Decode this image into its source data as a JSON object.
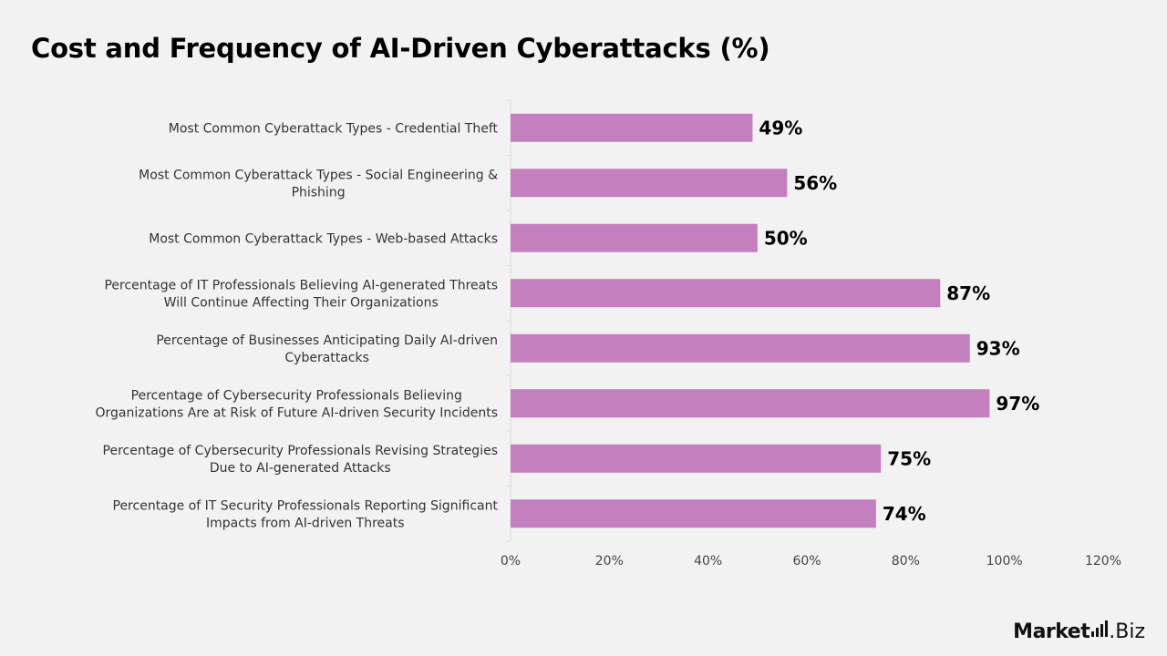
{
  "title": "Cost and Frequency of AI-Driven Cyberattacks  (%)",
  "brand": {
    "part1": "Market",
    "part2": ".Biz"
  },
  "colors": {
    "background": "#f2f2f2",
    "bar": "#c47fbe",
    "axis": "#d9d9d9"
  },
  "chart_data": {
    "type": "bar",
    "orientation": "horizontal",
    "title": "Cost and Frequency of AI-Driven Cyberattacks  (%)",
    "categories": [
      [
        "Most Common Cyberattack Types - Credential Theft"
      ],
      [
        "Most Common Cyberattack Types - Social Engineering &",
        "Phishing"
      ],
      [
        "Most Common Cyberattack Types - Web-based Attacks"
      ],
      [
        "Percentage of IT Professionals Believing AI-generated Threats",
        "Will Continue Affecting Their Organizations"
      ],
      [
        "Percentage of Businesses Anticipating Daily AI-driven",
        "Cyberattacks"
      ],
      [
        "Percentage of Cybersecurity Professionals Believing",
        "Organizations Are at Risk of Future AI-driven Security Incidents"
      ],
      [
        "Percentage of Cybersecurity Professionals Revising Strategies",
        "Due to AI-generated Attacks"
      ],
      [
        "Percentage of IT Security Professionals Reporting Significant",
        "Impacts from AI-driven Threats"
      ]
    ],
    "values": [
      49,
      56,
      50,
      87,
      93,
      97,
      75,
      74
    ],
    "data_labels": [
      "49%",
      "56%",
      "50%",
      "87%",
      "93%",
      "97%",
      "75%",
      "74%"
    ],
    "xlim": [
      0,
      120
    ],
    "xticks": [
      0,
      20,
      40,
      60,
      80,
      100,
      120
    ],
    "xtick_labels": [
      "0%",
      "20%",
      "40%",
      "60%",
      "80%",
      "100%",
      "120%"
    ],
    "grid": false,
    "legend": "none"
  }
}
